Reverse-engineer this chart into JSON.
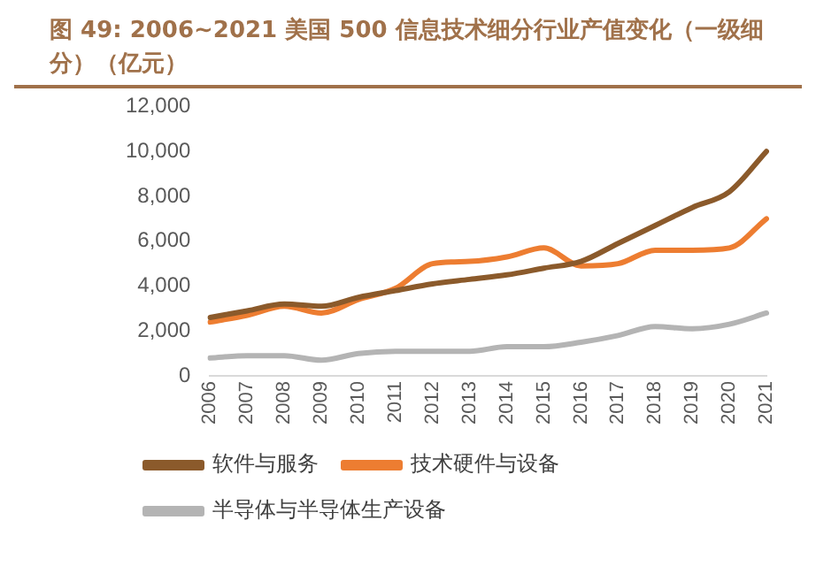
{
  "chart_data": {
    "type": "line",
    "title": "图 49: 2006~2021 美国 500 信息技术细分行业产值变化（一级细分）（亿元）",
    "categories": [
      "2006",
      "2007",
      "2008",
      "2009",
      "2010",
      "2011",
      "2012",
      "2013",
      "2014",
      "2015",
      "2016",
      "2017",
      "2018",
      "2019",
      "2020",
      "2021"
    ],
    "series": [
      {
        "name": "软件与服务",
        "color": "#8b5a2b",
        "values": [
          2600,
          2900,
          3200,
          3100,
          3500,
          3800,
          4100,
          4300,
          4500,
          4800,
          5100,
          5900,
          6700,
          7500,
          8200,
          10000
        ]
      },
      {
        "name": "技术硬件与设备",
        "color": "#ed7d31",
        "values": [
          2400,
          2700,
          3100,
          2800,
          3400,
          3900,
          5000,
          5100,
          5300,
          5700,
          4900,
          5000,
          5600,
          5600,
          5700,
          7000
        ]
      },
      {
        "name": "半导体与半导体生产设备",
        "color": "#b4b4b4",
        "values": [
          800,
          900,
          900,
          700,
          1000,
          1100,
          1100,
          1100,
          1300,
          1300,
          1500,
          1800,
          2200,
          2100,
          2300,
          2800
        ]
      }
    ],
    "ylim": [
      0,
      12000
    ],
    "yticks": [
      0,
      {
        "value": 2000,
        "label": "2,000"
      },
      {
        "value": 4000,
        "label": "4,000"
      },
      {
        "value": 6000,
        "label": "6,000"
      },
      {
        "value": 8000,
        "label": "8,000"
      },
      {
        "value": 10000,
        "label": "10,000"
      },
      {
        "value": 12000,
        "label": "12,000"
      }
    ],
    "grid": false,
    "legend": "bottom",
    "marker": "none",
    "line_style": "solid"
  }
}
